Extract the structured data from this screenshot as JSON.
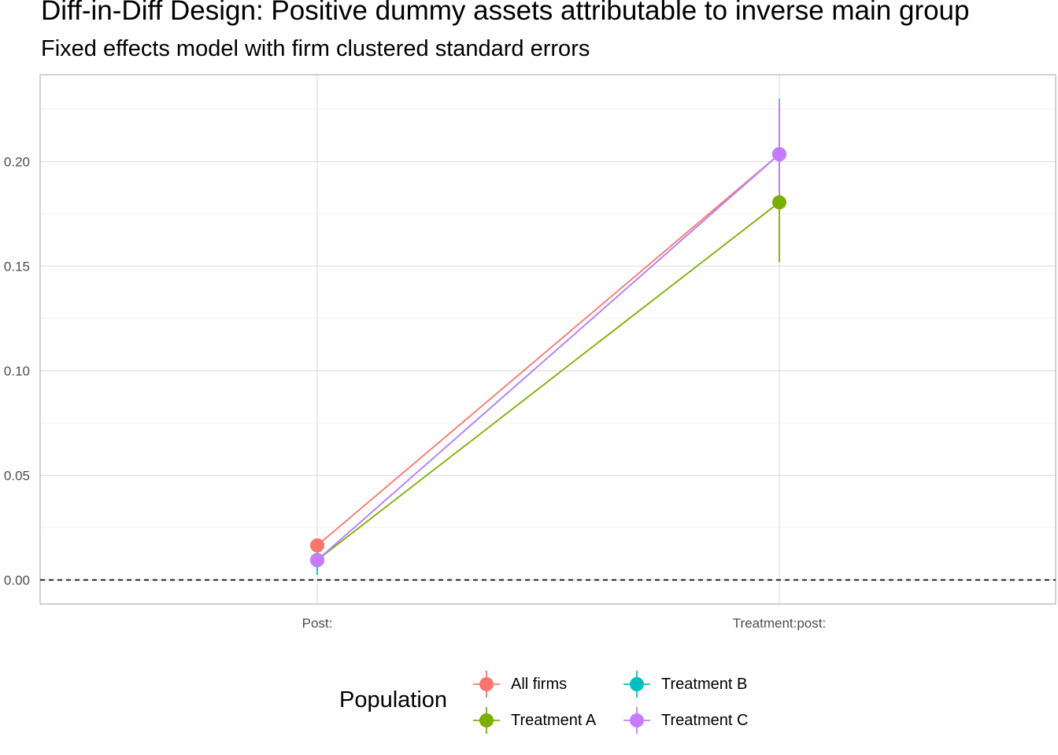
{
  "chart_data": {
    "type": "line",
    "title": "Diff-in-Diff Design: Positive dummy assets attributable to inverse main group",
    "subtitle": "Fixed effects model with firm clustered standard errors",
    "xlabel": "",
    "ylabel": "",
    "categories": [
      "Post:",
      "Treatment:post:"
    ],
    "ylim": [
      -0.0115,
      0.2415
    ],
    "yticks": [
      "0.00",
      "0.05",
      "0.10",
      "0.15",
      "0.20"
    ],
    "ytick_values": [
      0.0,
      0.05,
      0.1,
      0.15,
      0.2
    ],
    "reference_line": {
      "y": 0.0,
      "style": "dashed"
    },
    "grid": true,
    "legend": {
      "title": "Population",
      "placement": "bottom"
    },
    "series": [
      {
        "name": "All firms",
        "color": "#F8766D",
        "values": [
          0.0165,
          0.2035
        ],
        "lower": [
          0.0155,
          0.2025
        ],
        "upper": [
          0.0175,
          0.2045
        ]
      },
      {
        "name": "Treatment A",
        "color": "#7CAE00",
        "values": [
          0.0095,
          0.1805
        ],
        "lower": [
          0.0085,
          0.152
        ],
        "upper": [
          0.0105,
          0.209
        ]
      },
      {
        "name": "Treatment B",
        "color": "#00BFC4",
        "values": [
          0.0095,
          0.2035
        ],
        "lower": [
          0.0025,
          0.177
        ],
        "upper": [
          0.0165,
          0.23
        ]
      },
      {
        "name": "Treatment C",
        "color": "#C77CFF",
        "values": [
          0.0095,
          0.2035
        ],
        "lower": [
          0.0085,
          0.177
        ],
        "upper": [
          0.0105,
          0.229
        ]
      }
    ]
  },
  "legend_items": [
    "All firms",
    "Treatment A",
    "Treatment B",
    "Treatment C"
  ]
}
